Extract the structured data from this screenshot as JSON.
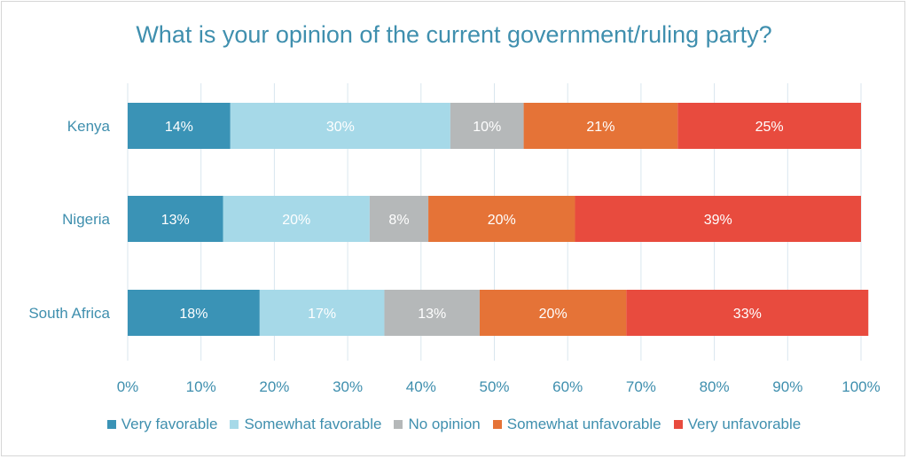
{
  "chart_data": {
    "type": "bar",
    "orientation": "horizontal",
    "stacked": true,
    "title": "What is your opinion of the current government/ruling party?",
    "xlabel": "",
    "ylabel": "",
    "xlim": [
      0,
      100
    ],
    "x_ticks": [
      "0%",
      "10%",
      "20%",
      "30%",
      "40%",
      "50%",
      "60%",
      "70%",
      "80%",
      "90%",
      "100%"
    ],
    "categories": [
      "Kenya",
      "Nigeria",
      "South Africa"
    ],
    "series": [
      {
        "name": "Very favorable",
        "color": "#3a93b6",
        "values": [
          14,
          13,
          18
        ]
      },
      {
        "name": "Somewhat favorable",
        "color": "#a6d9e8",
        "values": [
          30,
          20,
          17
        ]
      },
      {
        "name": "No opinion",
        "color": "#b5b8b9",
        "values": [
          10,
          8,
          13
        ]
      },
      {
        "name": "Somewhat unfavorable",
        "color": "#e57337",
        "values": [
          21,
          20,
          20
        ]
      },
      {
        "name": "Very unfavorable",
        "color": "#e84b3e",
        "values": [
          25,
          39,
          33
        ]
      }
    ],
    "grid": true,
    "legend_position": "bottom"
  }
}
